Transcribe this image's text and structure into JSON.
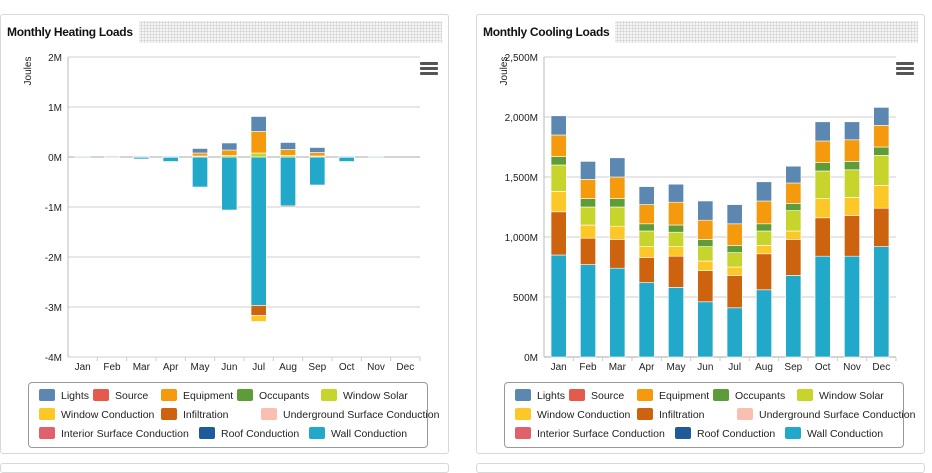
{
  "colors": {
    "Lights": "#5b87b1",
    "Source": "#e45a4b",
    "Equipment": "#f59a0c",
    "Occupants": "#5e9c3a",
    "Window Solar": "#c6d42b",
    "Window Conduction": "#fcc827",
    "Infiltration": "#cd630e",
    "Underground Surface Conduction": "#f9c0b1",
    "Interior Surface Conduction": "#e0616b",
    "Roof Conduction": "#1f5a9a",
    "Wall Conduction": "#22a9c9"
  },
  "legend": {
    "items": [
      "Lights",
      "Source",
      "Equipment",
      "Occupants",
      "Window Solar",
      "Window Conduction",
      "Infiltration",
      "Underground Surface Conduction",
      "Interior Surface Conduction",
      "Roof Conduction",
      "Wall Conduction"
    ]
  },
  "chart_data": [
    {
      "type": "bar",
      "stacked": true,
      "title": "Monthly Heating Loads",
      "ylabel": "Joules",
      "ylim": [
        -4,
        2
      ],
      "ytick_values": [
        2,
        1,
        0,
        -1,
        -2,
        -3,
        -4
      ],
      "ytick_labels": [
        "2M",
        "1M",
        "0M",
        "-1M",
        "-2M",
        "-3M",
        "-4M"
      ],
      "categories": [
        "Jan",
        "Feb",
        "Mar",
        "Apr",
        "May",
        "Jun",
        "Jul",
        "Aug",
        "Sep",
        "Oct",
        "Nov",
        "Dec"
      ],
      "grid": true,
      "legend_position": "bottom",
      "series": [
        {
          "name": "Wall Conduction",
          "values": [
            -0.01,
            -0.02,
            -0.04,
            -0.09,
            -0.6,
            -1.06,
            -2.97,
            -0.98,
            -0.56,
            -0.09,
            -0.01,
            0
          ]
        },
        {
          "name": "Infiltration",
          "values": [
            0,
            0,
            0,
            0,
            0,
            0,
            -0.2,
            -0.02,
            0,
            0,
            0,
            0
          ]
        },
        {
          "name": "Window Conduction",
          "values": [
            0,
            0,
            0,
            0,
            0,
            0,
            -0.12,
            0,
            0,
            0,
            0,
            0
          ]
        },
        {
          "name": "Window Solar",
          "values": [
            0,
            0,
            0,
            0,
            0.02,
            0.03,
            0.08,
            0.03,
            0.02,
            0,
            0,
            0
          ]
        },
        {
          "name": "Equipment",
          "values": [
            0,
            0,
            0,
            0,
            0.06,
            0.11,
            0.43,
            0.12,
            0.07,
            0,
            0,
            0
          ]
        },
        {
          "name": "Lights",
          "values": [
            0,
            0.01,
            0.01,
            0.01,
            0.09,
            0.14,
            0.3,
            0.14,
            0.1,
            0.01,
            0,
            0
          ]
        }
      ]
    },
    {
      "type": "bar",
      "stacked": true,
      "title": "Monthly Cooling Loads",
      "ylabel": "Joules",
      "ylim": [
        0,
        2500
      ],
      "ytick_values": [
        0,
        500,
        1000,
        1500,
        2000,
        2500
      ],
      "ytick_labels": [
        "0M",
        "500M",
        "1,000M",
        "1,500M",
        "2,000M",
        "2,500M"
      ],
      "categories": [
        "Jan",
        "Feb",
        "Mar",
        "Apr",
        "May",
        "Jun",
        "Jul",
        "Aug",
        "Sep",
        "Oct",
        "Nov",
        "Dec"
      ],
      "grid": true,
      "legend_position": "bottom",
      "series": [
        {
          "name": "Wall Conduction",
          "values": [
            850,
            770,
            740,
            620,
            580,
            460,
            410,
            560,
            680,
            840,
            840,
            920
          ]
        },
        {
          "name": "Infiltration",
          "values": [
            360,
            220,
            240,
            210,
            260,
            260,
            270,
            300,
            300,
            320,
            340,
            320
          ]
        },
        {
          "name": "Window Conduction",
          "values": [
            170,
            110,
            110,
            90,
            80,
            80,
            70,
            70,
            70,
            160,
            150,
            190
          ]
        },
        {
          "name": "Window Solar",
          "values": [
            220,
            150,
            160,
            130,
            120,
            120,
            120,
            120,
            170,
            230,
            230,
            250
          ]
        },
        {
          "name": "Occupants",
          "values": [
            70,
            70,
            70,
            60,
            60,
            60,
            60,
            60,
            60,
            70,
            70,
            70
          ]
        },
        {
          "name": "Equipment",
          "values": [
            180,
            160,
            180,
            160,
            190,
            160,
            180,
            190,
            170,
            180,
            180,
            180
          ]
        },
        {
          "name": "Lights",
          "values": [
            160,
            150,
            160,
            150,
            150,
            160,
            160,
            160,
            140,
            160,
            150,
            150
          ]
        }
      ]
    }
  ]
}
